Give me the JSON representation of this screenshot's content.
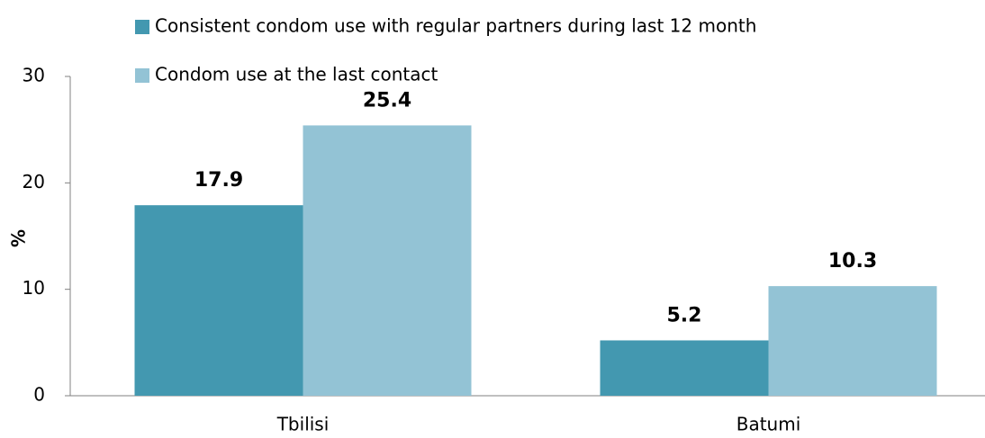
{
  "chart_data": {
    "type": "bar",
    "ylabel": "%",
    "categories": [
      "Tbilisi",
      "Batumi"
    ],
    "series": [
      {
        "name": "Consistent condom use with regular partners during last 12 month",
        "color": "#4398b0",
        "values": [
          17.9,
          5.2
        ]
      },
      {
        "name": "Condom use at the last contact",
        "color": "#93c3d5",
        "values": [
          25.4,
          10.3
        ]
      }
    ],
    "ylim": [
      0,
      30
    ],
    "yticks": [
      0,
      10,
      20,
      30
    ],
    "grid": false
  }
}
